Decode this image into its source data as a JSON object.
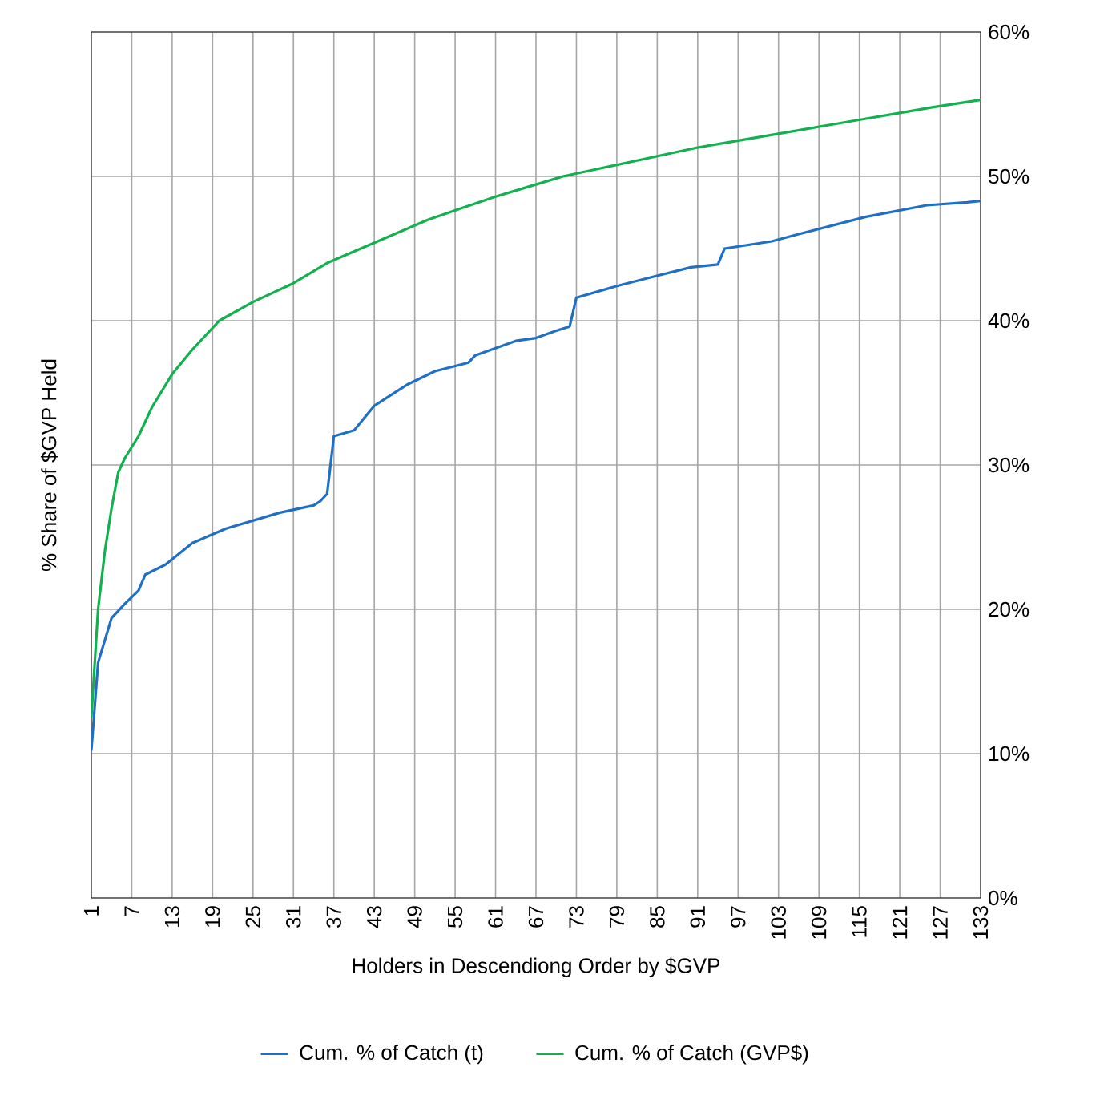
{
  "chart_data": {
    "type": "line",
    "xlabel": "Holders in Descendiong Order by $GVP",
    "ylabel": "% Share of $GVP Held",
    "xlim": [
      1,
      133
    ],
    "xticks": [
      1,
      7,
      13,
      19,
      25,
      31,
      37,
      43,
      49,
      55,
      61,
      67,
      73,
      79,
      85,
      91,
      97,
      103,
      109,
      115,
      121,
      127,
      133
    ],
    "ylim": [
      0,
      60
    ],
    "yticks": [
      {
        "value": 0,
        "label": "0%"
      },
      {
        "value": 10,
        "label": "10%"
      },
      {
        "value": 20,
        "label": "20%"
      },
      {
        "value": 30,
        "label": "30%"
      },
      {
        "value": 40,
        "label": "40%"
      },
      {
        "value": 50,
        "label": "50%"
      },
      {
        "value": 60,
        "label": "60%"
      }
    ],
    "grid": true,
    "legend": "bottom",
    "marker": "none",
    "line_style": "solid",
    "series": [
      {
        "name": "Cum. % of Catch (t)",
        "color": "#1f6fc5",
        "x": [
          1,
          2,
          4,
          6,
          8,
          9,
          12,
          16,
          21,
          29,
          34,
          35,
          36,
          37,
          40,
          43,
          48,
          52,
          57,
          58,
          64,
          67,
          70,
          72,
          73,
          79,
          84,
          90,
          94,
          95,
          102,
          106,
          116,
          125,
          131,
          133
        ],
        "values": [
          10.2,
          16.3,
          19.4,
          20.4,
          21.3,
          22.4,
          23.1,
          24.6,
          25.6,
          26.7,
          27.2,
          27.5,
          28.0,
          32.0,
          32.4,
          34.1,
          35.6,
          36.5,
          37.1,
          37.6,
          38.6,
          38.8,
          39.3,
          39.6,
          41.6,
          42.4,
          43.0,
          43.7,
          43.9,
          45.0,
          45.5,
          46.0,
          47.2,
          48.0,
          48.2,
          48.3
        ]
      },
      {
        "name": "Cum. % of Catch (GVP$)",
        "color": "#12b04f",
        "x": [
          1,
          2,
          3,
          4,
          5,
          6,
          8,
          10,
          13,
          16,
          20,
          25,
          31,
          36,
          41,
          46,
          51,
          56,
          61,
          66,
          71,
          76,
          81,
          86,
          91,
          96,
          101,
          106,
          111,
          116,
          121,
          126,
          133
        ],
        "values": [
          12.5,
          20,
          24,
          27,
          29.5,
          30.5,
          32,
          34,
          36.3,
          38,
          40,
          41.3,
          42.6,
          44,
          45,
          46,
          47,
          47.8,
          48.6,
          49.3,
          50,
          50.5,
          51,
          51.5,
          52,
          52.4,
          52.8,
          53.2,
          53.6,
          54,
          54.4,
          54.8,
          55.3
        ]
      }
    ]
  }
}
